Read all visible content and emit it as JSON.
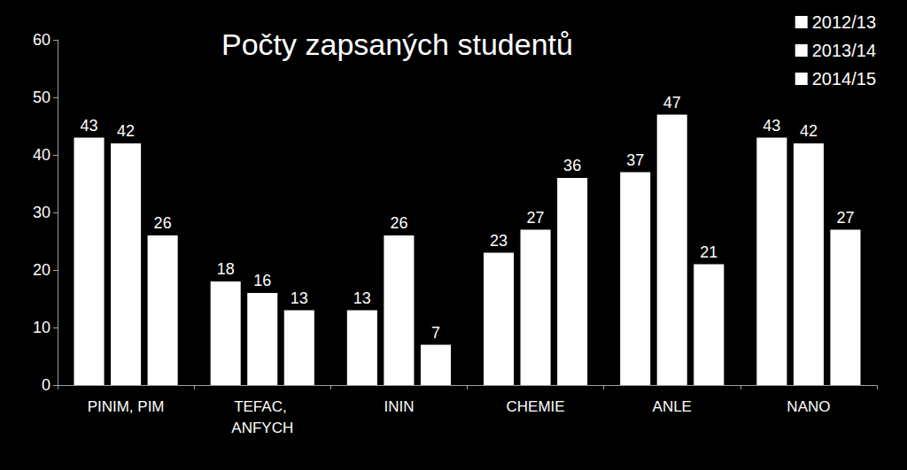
{
  "chart_data": {
    "type": "bar",
    "title": "Počty zapsaných studentů",
    "categories": [
      "PINIM, PIM",
      "TEFAC, ANFYCH",
      "ININ",
      "CHEMIE",
      "ANLE",
      "NANO"
    ],
    "series": [
      {
        "name": "2012/13",
        "color": "#ffffff",
        "values": [
          43,
          18,
          13,
          23,
          37,
          43
        ]
      },
      {
        "name": "2013/14",
        "color": "#ffffff",
        "values": [
          42,
          16,
          26,
          27,
          47,
          42
        ]
      },
      {
        "name": "2014/15",
        "color": "#ffffff",
        "values": [
          26,
          13,
          7,
          36,
          21,
          27
        ]
      }
    ],
    "ylim": [
      0,
      60
    ],
    "yticks": [
      0,
      10,
      20,
      30,
      40,
      50,
      60
    ],
    "grid": false,
    "legend": "top-right",
    "data_labels": true
  }
}
